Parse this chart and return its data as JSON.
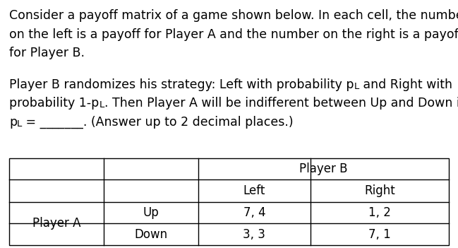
{
  "background_color": "#ffffff",
  "text_color": "#000000",
  "line1": "Consider a payoff matrix of a game shown below. In each cell, the number",
  "line2": "on the left is a payoff for Player A and the number on the right is a payoff",
  "line3": "for Player B.",
  "line4": "Player B randomizes his strategy: Left with probability p",
  "line4_sub": "L",
  "line4_end": " and Right with",
  "line5": "probability 1-p",
  "line5_sub": "L",
  "line5_end": ". Then Player A will be indifferent between Up and Down if",
  "line6": "p",
  "line6_sub": "L",
  "line6_end": " = _______. (Answer up to 2 decimal places.)",
  "table": {
    "player_b_label": "Player B",
    "player_a_label": "Player A",
    "col_headers": [
      "Left",
      "Right"
    ],
    "row_headers": [
      "Up",
      "Down"
    ],
    "cells": [
      [
        "7, 4",
        "1, 2"
      ],
      [
        "3, 3",
        "7, 1"
      ]
    ]
  },
  "font_size_body": 12.5,
  "font_size_table": 12.0,
  "font_size_sub": 9.5
}
